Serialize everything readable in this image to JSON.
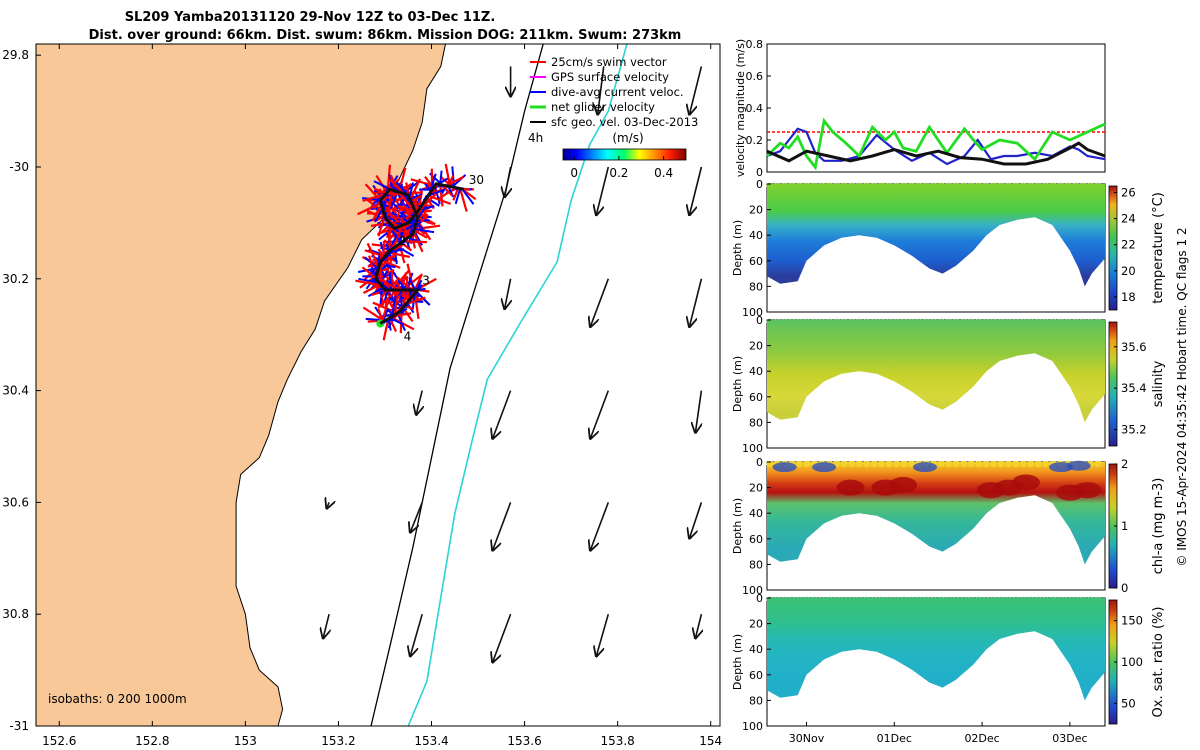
{
  "header": {
    "title_line1": "SL209 Yamba20131120 29-Nov 12Z to 03-Dec 11Z.",
    "title_line2": "Dist. over ground: 66km. Dist. swum: 86km. Mission DOG: 211km. Swum: 273km"
  },
  "credit": "© IMOS 15-Apr-2024 04:35:42 Hobart time. QC flags 1  2",
  "colors": {
    "land": "#f8c898",
    "path": "#111111",
    "vector_red": "#ff0000",
    "vector_blue": "#0000ff",
    "isobath_200": "#000000",
    "isobath_1000": "#2ad4d4",
    "speed": "#2222cc",
    "net": "#22dd22",
    "geo": "#111111"
  },
  "chart_data": [
    {
      "type": "map",
      "name": "glider track",
      "xlim": [
        152.55,
        154.02
      ],
      "ylim": [
        -31,
        -29.78
      ],
      "x_ticks": [
        152.6,
        152.8,
        153,
        153.2,
        153.4,
        153.6,
        153.8,
        154
      ],
      "x_tick_labels": [
        "152.6",
        "152.8",
        "153",
        "153.2",
        "153.4",
        "153.6",
        "153.8",
        "154"
      ],
      "y_ticks": [
        -29.8,
        -30,
        -30.2,
        -30.4,
        -30.6,
        -30.8,
        -31
      ],
      "y_tick_labels": [
        "29.8",
        "-30",
        "30.2",
        "30.4",
        "30.6",
        "30.8",
        "-31"
      ],
      "legend": [
        {
          "label": "25cm/s swim vector",
          "color": "#ff0000"
        },
        {
          "label": "GPS surface velocity",
          "color": "#ff00ff"
        },
        {
          "label": "dive-avg current veloc.",
          "color": "#0000ff"
        },
        {
          "label": "net glider velocity",
          "color": "#22dd22"
        },
        {
          "label": "sfc geo. vel. 03-Dec-2013",
          "color": "#000000"
        }
      ],
      "scale_label": "4h",
      "colorbar": {
        "title": "(m/s)",
        "ticks": [
          0,
          0.2,
          0.4
        ],
        "range": [
          -0.05,
          0.5
        ]
      },
      "isobaths_label": "isobaths: 0   200  1000m",
      "coastline": [
        [
          153.43,
          -29.78
        ],
        [
          153.42,
          -29.82
        ],
        [
          153.39,
          -29.86
        ],
        [
          153.38,
          -29.92
        ],
        [
          153.36,
          -29.97
        ],
        [
          153.32,
          -30.04
        ],
        [
          153.3,
          -30.09
        ],
        [
          153.25,
          -30.13
        ],
        [
          153.22,
          -30.18
        ],
        [
          153.17,
          -30.24
        ],
        [
          153.15,
          -30.29
        ],
        [
          153.12,
          -30.33
        ],
        [
          153.09,
          -30.38
        ],
        [
          153.07,
          -30.42
        ],
        [
          153.05,
          -30.48
        ],
        [
          153.03,
          -30.52
        ],
        [
          152.99,
          -30.55
        ],
        [
          152.98,
          -30.6
        ],
        [
          152.98,
          -30.68
        ],
        [
          152.98,
          -30.75
        ],
        [
          153.0,
          -30.8
        ],
        [
          153.01,
          -30.86
        ],
        [
          153.03,
          -30.9
        ],
        [
          153.07,
          -30.93
        ],
        [
          153.08,
          -30.97
        ],
        [
          153.07,
          -31.0
        ]
      ],
      "isobath_200": [
        [
          153.64,
          -29.78
        ],
        [
          153.6,
          -29.9
        ],
        [
          153.56,
          -30.04
        ],
        [
          153.5,
          -30.2
        ],
        [
          153.44,
          -30.36
        ],
        [
          153.4,
          -30.52
        ],
        [
          153.36,
          -30.68
        ],
        [
          153.31,
          -30.86
        ],
        [
          153.27,
          -31.0
        ]
      ],
      "isobath_1000": [
        [
          153.82,
          -29.78
        ],
        [
          153.78,
          -29.9
        ],
        [
          153.74,
          -29.96
        ],
        [
          153.7,
          -30.06
        ],
        [
          153.67,
          -30.17
        ],
        [
          153.59,
          -30.28
        ],
        [
          153.52,
          -30.38
        ],
        [
          153.49,
          -30.48
        ],
        [
          153.45,
          -30.62
        ],
        [
          153.42,
          -30.77
        ],
        [
          153.39,
          -30.92
        ],
        [
          153.35,
          -31.0
        ]
      ],
      "track": [
        [
          153.47,
          -30.04
        ],
        [
          153.41,
          -30.03
        ],
        [
          153.37,
          -30.08
        ],
        [
          153.35,
          -30.1
        ],
        [
          153.32,
          -30.11
        ],
        [
          153.3,
          -30.09
        ],
        [
          153.29,
          -30.06
        ],
        [
          153.31,
          -30.04
        ],
        [
          153.35,
          -30.05
        ],
        [
          153.37,
          -30.09
        ],
        [
          153.36,
          -30.12
        ],
        [
          153.31,
          -30.15
        ],
        [
          153.29,
          -30.17
        ],
        [
          153.28,
          -30.2
        ],
        [
          153.3,
          -30.22
        ],
        [
          153.33,
          -30.22
        ],
        [
          153.37,
          -30.22
        ],
        [
          153.33,
          -30.26
        ],
        [
          153.29,
          -30.28
        ]
      ],
      "track_labels": [
        {
          "label": "30",
          "lon": 153.48,
          "lat": -30.03
        },
        {
          "label": "2",
          "lon": 153.33,
          "lat": -30.14
        },
        {
          "label": "3",
          "lon": 153.38,
          "lat": -30.21
        },
        {
          "label": "4",
          "lon": 153.34,
          "lat": -30.31
        }
      ],
      "surface_vectors": [
        {
          "lon": 153.57,
          "lat": -29.82,
          "u": 0.0,
          "v": -0.05
        },
        {
          "lon": 153.77,
          "lat": -29.82,
          "u": -0.01,
          "v": -0.08
        },
        {
          "lon": 153.98,
          "lat": -29.82,
          "u": -0.02,
          "v": -0.08
        },
        {
          "lon": 153.57,
          "lat": -30.0,
          "u": -0.01,
          "v": -0.05
        },
        {
          "lon": 153.78,
          "lat": -30.0,
          "u": -0.02,
          "v": -0.08
        },
        {
          "lon": 153.98,
          "lat": -30.0,
          "u": -0.02,
          "v": -0.08
        },
        {
          "lon": 153.57,
          "lat": -30.2,
          "u": -0.01,
          "v": -0.05
        },
        {
          "lon": 153.78,
          "lat": -30.2,
          "u": -0.03,
          "v": -0.08
        },
        {
          "lon": 153.98,
          "lat": -30.2,
          "u": -0.02,
          "v": -0.08
        },
        {
          "lon": 153.38,
          "lat": -30.4,
          "u": -0.01,
          "v": -0.04
        },
        {
          "lon": 153.57,
          "lat": -30.4,
          "u": -0.03,
          "v": -0.08
        },
        {
          "lon": 153.78,
          "lat": -30.4,
          "u": -0.03,
          "v": -0.08
        },
        {
          "lon": 153.98,
          "lat": -30.4,
          "u": -0.01,
          "v": -0.07
        },
        {
          "lon": 153.18,
          "lat": -30.6,
          "u": -0.004,
          "v": -0.01
        },
        {
          "lon": 153.38,
          "lat": -30.6,
          "u": -0.02,
          "v": -0.05
        },
        {
          "lon": 153.57,
          "lat": -30.6,
          "u": -0.03,
          "v": -0.08
        },
        {
          "lon": 153.78,
          "lat": -30.6,
          "u": -0.03,
          "v": -0.08
        },
        {
          "lon": 153.98,
          "lat": -30.6,
          "u": -0.02,
          "v": -0.06
        },
        {
          "lon": 153.18,
          "lat": -30.8,
          "u": -0.01,
          "v": -0.04
        },
        {
          "lon": 153.38,
          "lat": -30.8,
          "u": -0.02,
          "v": -0.07
        },
        {
          "lon": 153.57,
          "lat": -30.8,
          "u": -0.03,
          "v": -0.08
        },
        {
          "lon": 153.78,
          "lat": -30.8,
          "u": -0.02,
          "v": -0.07
        },
        {
          "lon": 153.98,
          "lat": -30.8,
          "u": -0.01,
          "v": -0.04
        }
      ]
    },
    {
      "type": "line",
      "name": "velocity",
      "ylabel": "velocity magnitude (m/s)",
      "xlim": [
        -0.45,
        3.4
      ],
      "ylim": [
        0,
        0.8
      ],
      "y_ticks": [
        0,
        0.2,
        0.4,
        0.6,
        0.8
      ],
      "y_tick_labels": [
        "0",
        "0.2",
        "0.4",
        "0.6",
        "0.8"
      ],
      "reference_speed": 0.25,
      "series": [
        {
          "role": "dive-avg current",
          "color": "#2222cc",
          "x": [
            -0.45,
            -0.3,
            -0.2,
            -0.1,
            0.0,
            0.1,
            0.2,
            0.4,
            0.6,
            0.8,
            1.0,
            1.2,
            1.4,
            1.6,
            1.8,
            1.95,
            2.1,
            2.25,
            2.4,
            2.6,
            2.8,
            3.0,
            3.1,
            3.2,
            3.3,
            3.4
          ],
          "y": [
            0.1,
            0.13,
            0.2,
            0.27,
            0.25,
            0.12,
            0.07,
            0.07,
            0.1,
            0.23,
            0.14,
            0.07,
            0.12,
            0.05,
            0.1,
            0.2,
            0.08,
            0.1,
            0.1,
            0.12,
            0.1,
            0.16,
            0.14,
            0.1,
            0.09,
            0.08
          ]
        },
        {
          "role": "net glider velocity",
          "color": "#22dd22",
          "x": [
            -0.45,
            -0.3,
            -0.2,
            -0.1,
            0.0,
            0.1,
            0.2,
            0.3,
            0.45,
            0.6,
            0.75,
            0.9,
            1.0,
            1.1,
            1.25,
            1.4,
            1.6,
            1.8,
            1.9,
            2.0,
            2.2,
            2.4,
            2.6,
            2.8,
            3.0,
            3.2,
            3.4
          ],
          "y": [
            0.1,
            0.18,
            0.15,
            0.22,
            0.1,
            0.03,
            0.32,
            0.25,
            0.18,
            0.1,
            0.28,
            0.2,
            0.25,
            0.15,
            0.13,
            0.28,
            0.12,
            0.27,
            0.2,
            0.14,
            0.2,
            0.18,
            0.08,
            0.25,
            0.2,
            0.25,
            0.3
          ]
        },
        {
          "role": "sfc geo. vel.",
          "color": "#111111",
          "x": [
            -0.45,
            -0.2,
            0.0,
            0.25,
            0.5,
            0.75,
            1.0,
            1.25,
            1.5,
            1.75,
            2.0,
            2.25,
            2.5,
            2.75,
            3.0,
            3.1,
            3.2,
            3.4
          ],
          "y": [
            0.13,
            0.07,
            0.13,
            0.1,
            0.07,
            0.1,
            0.14,
            0.1,
            0.13,
            0.09,
            0.08,
            0.05,
            0.05,
            0.08,
            0.15,
            0.18,
            0.14,
            0.1
          ]
        }
      ]
    },
    {
      "type": "heatmap",
      "name": "temperature",
      "ylabel": "Depth (m)",
      "colorbar_label": "temperature (°C)",
      "cbar_ticks": [
        18,
        20,
        22,
        24,
        26
      ],
      "cbar_tick_labels": [
        "18",
        "20",
        "22",
        "24",
        "26"
      ],
      "cbar_range": [
        17,
        26.5
      ],
      "y_ticks": [
        0,
        20,
        40,
        60,
        80,
        100
      ],
      "y_tick_labels": [
        "0",
        "20",
        "40",
        "60",
        "80",
        "100"
      ]
    },
    {
      "type": "heatmap",
      "name": "salinity",
      "ylabel": "Depth (m)",
      "colorbar_label": "salinity",
      "cbar_ticks": [
        35.2,
        35.4,
        35.6
      ],
      "cbar_tick_labels": [
        "35.2",
        "35.4",
        "35.6"
      ],
      "cbar_range": [
        35.12,
        35.72
      ],
      "y_ticks": [
        0,
        20,
        40,
        60,
        80,
        100
      ],
      "y_tick_labels": [
        "0",
        "20",
        "40",
        "60",
        "80",
        "100"
      ]
    },
    {
      "type": "heatmap",
      "name": "chl-a",
      "ylabel": "Depth (m)",
      "colorbar_label": "chl-a (mg m-3)",
      "cbar_ticks": [
        0,
        1,
        2
      ],
      "cbar_tick_labels": [
        "0",
        "1",
        "2"
      ],
      "cbar_range": [
        0,
        2
      ],
      "y_ticks": [
        0,
        20,
        40,
        60,
        80,
        100
      ],
      "y_tick_labels": [
        "0",
        "20",
        "40",
        "60",
        "80",
        "100"
      ]
    },
    {
      "type": "heatmap",
      "name": "oxygen",
      "ylabel": "Depth (m)",
      "colorbar_label": "Ox. sat. ratio (%)",
      "cbar_ticks": [
        50,
        100,
        150
      ],
      "cbar_tick_labels": [
        "50",
        "100",
        "150"
      ],
      "cbar_range": [
        25,
        175
      ],
      "y_ticks": [
        0,
        20,
        40,
        60,
        80,
        100
      ],
      "y_tick_labels": [
        "0",
        "20",
        "40",
        "60",
        "80",
        "100"
      ],
      "x_ticks": [
        0,
        1,
        2,
        3
      ],
      "x_tick_labels": [
        "30Nov",
        "01Dec",
        "02Dec",
        "03Dec"
      ]
    }
  ]
}
